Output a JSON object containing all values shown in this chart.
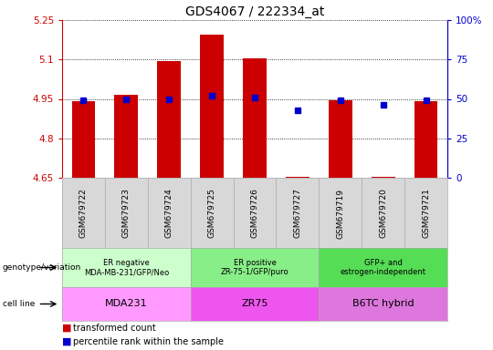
{
  "title": "GDS4067 / 222334_at",
  "samples": [
    "GSM679722",
    "GSM679723",
    "GSM679724",
    "GSM679725",
    "GSM679726",
    "GSM679727",
    "GSM679719",
    "GSM679720",
    "GSM679721"
  ],
  "bar_values": [
    4.94,
    4.965,
    5.095,
    5.195,
    5.105,
    4.655,
    4.945,
    4.655,
    4.94
  ],
  "percentile_values": [
    49,
    50,
    50,
    52,
    51,
    43,
    49,
    46,
    49
  ],
  "ylim": [
    4.65,
    5.25
  ],
  "yticks": [
    4.65,
    4.8,
    4.95,
    5.1,
    5.25
  ],
  "y2lim": [
    0,
    100
  ],
  "y2ticks": [
    0,
    25,
    50,
    75,
    100
  ],
  "bar_color": "#cc0000",
  "dot_color": "#0000cc",
  "bar_width": 0.55,
  "groups": [
    {
      "label": "ER negative\nMDA-MB-231/GFP/Neo",
      "cell_line": "MDA231",
      "start": 0,
      "end": 3,
      "geno_color": "#ccffcc",
      "cell_color": "#ff99ff"
    },
    {
      "label": "ER positive\nZR-75-1/GFP/puro",
      "cell_line": "ZR75",
      "start": 3,
      "end": 6,
      "geno_color": "#88ee88",
      "cell_color": "#ee55ee"
    },
    {
      "label": "GFP+ and\nestrogen-independent",
      "cell_line": "B6TC hybrid",
      "start": 6,
      "end": 9,
      "geno_color": "#55dd55",
      "cell_color": "#dd77dd"
    }
  ],
  "legend_items": [
    {
      "label": "transformed count",
      "color": "#cc0000"
    },
    {
      "label": "percentile rank within the sample",
      "color": "#0000cc"
    }
  ],
  "left_axis_color": "#cc0000",
  "right_axis_color": "#0000cc",
  "tick_bg_color": "#d8d8d8"
}
